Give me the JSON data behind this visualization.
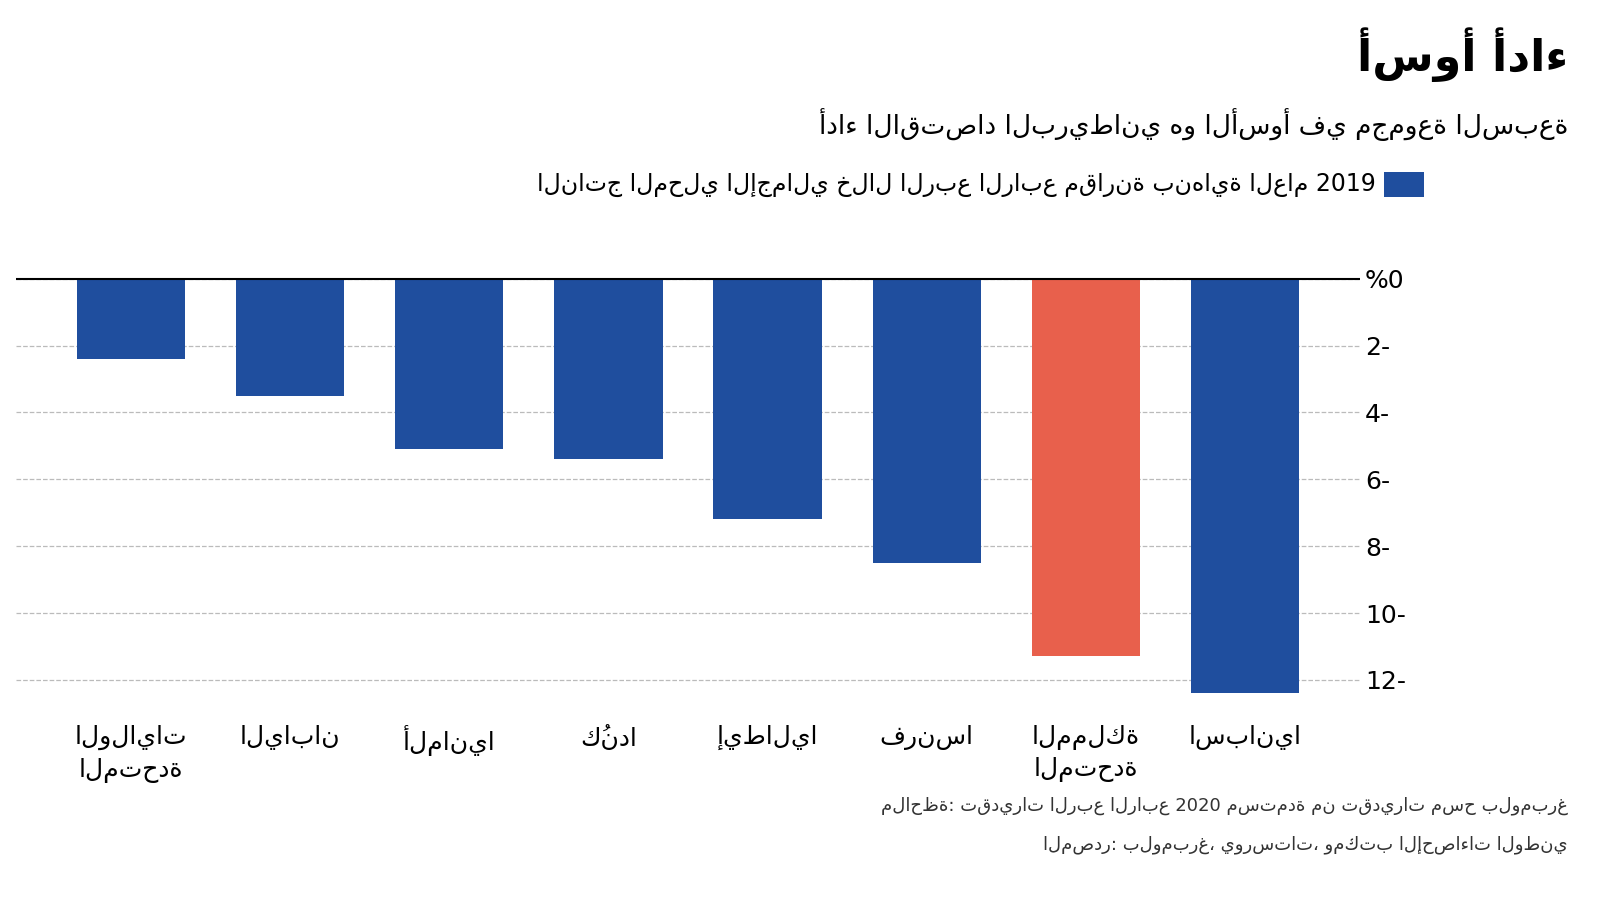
{
  "title": "أسوأ أداء",
  "subtitle": "أداء الاقتصاد البريطاني هو الأسوأ في مجموعة السبعة",
  "legend_label": "الناتج المحلي الإجمالي خلال الربع الرابع مقارنة بنهاية العام 2019",
  "note": "ملاحظة: تقديرات الربع الرابع 2020 مستمدة من تقديرات مسح بلومبرغ",
  "source": "المصدر: بلومبرغ، يورستات، ومكتب الإحصاءات الوطني",
  "categories": [
    "الولايات\nالمتحدة",
    "اليابان",
    "ألمانيا",
    "كُندا",
    "إيطاليا",
    "فرنسا",
    "المملكة\nالمتحدة",
    "اسبانيا"
  ],
  "values": [
    -2.4,
    -3.5,
    -5.1,
    -5.4,
    -7.2,
    -8.5,
    -11.3,
    -12.4
  ],
  "colors": [
    "#1f4e9e",
    "#1f4e9e",
    "#1f4e9e",
    "#1f4e9e",
    "#1f4e9e",
    "#1f4e9e",
    "#e8604c",
    "#1f4e9e"
  ],
  "ylim": [
    -13.2,
    0.8
  ],
  "yticks": [
    0,
    -2,
    -4,
    -6,
    -8,
    -10,
    -12
  ],
  "background_color": "#ffffff",
  "bar_color_blue": "#1f4e9e",
  "bar_color_red": "#e8604c",
  "grid_color": "#bbbbbb",
  "title_fontsize": 32,
  "subtitle_fontsize": 19,
  "legend_fontsize": 17,
  "tick_fontsize": 18,
  "note_fontsize": 13
}
